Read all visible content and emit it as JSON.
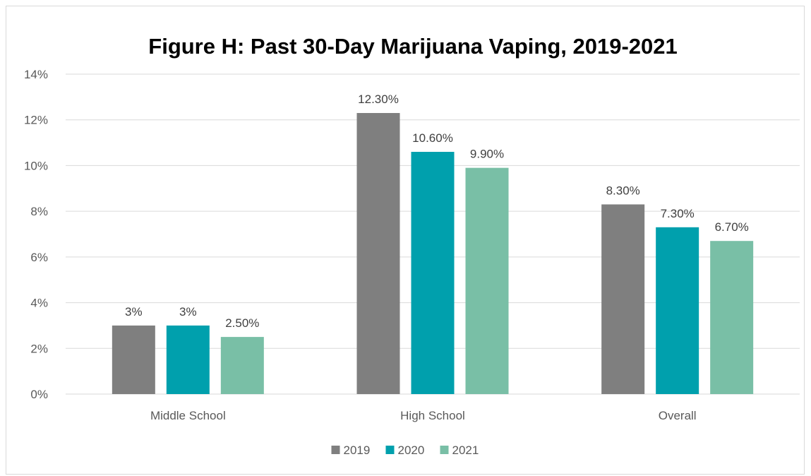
{
  "chart_data": {
    "type": "bar",
    "title": "Figure H: Past 30-Day Marijuana Vaping, 2019-2021",
    "xlabel": "",
    "ylabel": "",
    "categories": [
      "Middle School",
      "High School",
      "Overall"
    ],
    "series": [
      {
        "name": "2019",
        "color": "#7f7f7f",
        "values": [
          3.0,
          12.3,
          8.3
        ],
        "labels": [
          "3%",
          "12.30%",
          "8.30%"
        ]
      },
      {
        "name": "2020",
        "color": "#00a0ad",
        "values": [
          3.0,
          10.6,
          7.3
        ],
        "labels": [
          "3%",
          "10.60%",
          "7.30%"
        ]
      },
      {
        "name": "2021",
        "color": "#79bfa6",
        "values": [
          2.5,
          9.9,
          6.7
        ],
        "labels": [
          "2.50%",
          "9.90%",
          "6.70%"
        ]
      }
    ],
    "ylim": [
      0,
      14
    ],
    "yticks": [
      0,
      2,
      4,
      6,
      8,
      10,
      12,
      14
    ],
    "ytick_labels": [
      "0%",
      "2%",
      "4%",
      "6%",
      "8%",
      "10%",
      "12%",
      "14%"
    ],
    "grid": true,
    "legend_position": "bottom"
  }
}
